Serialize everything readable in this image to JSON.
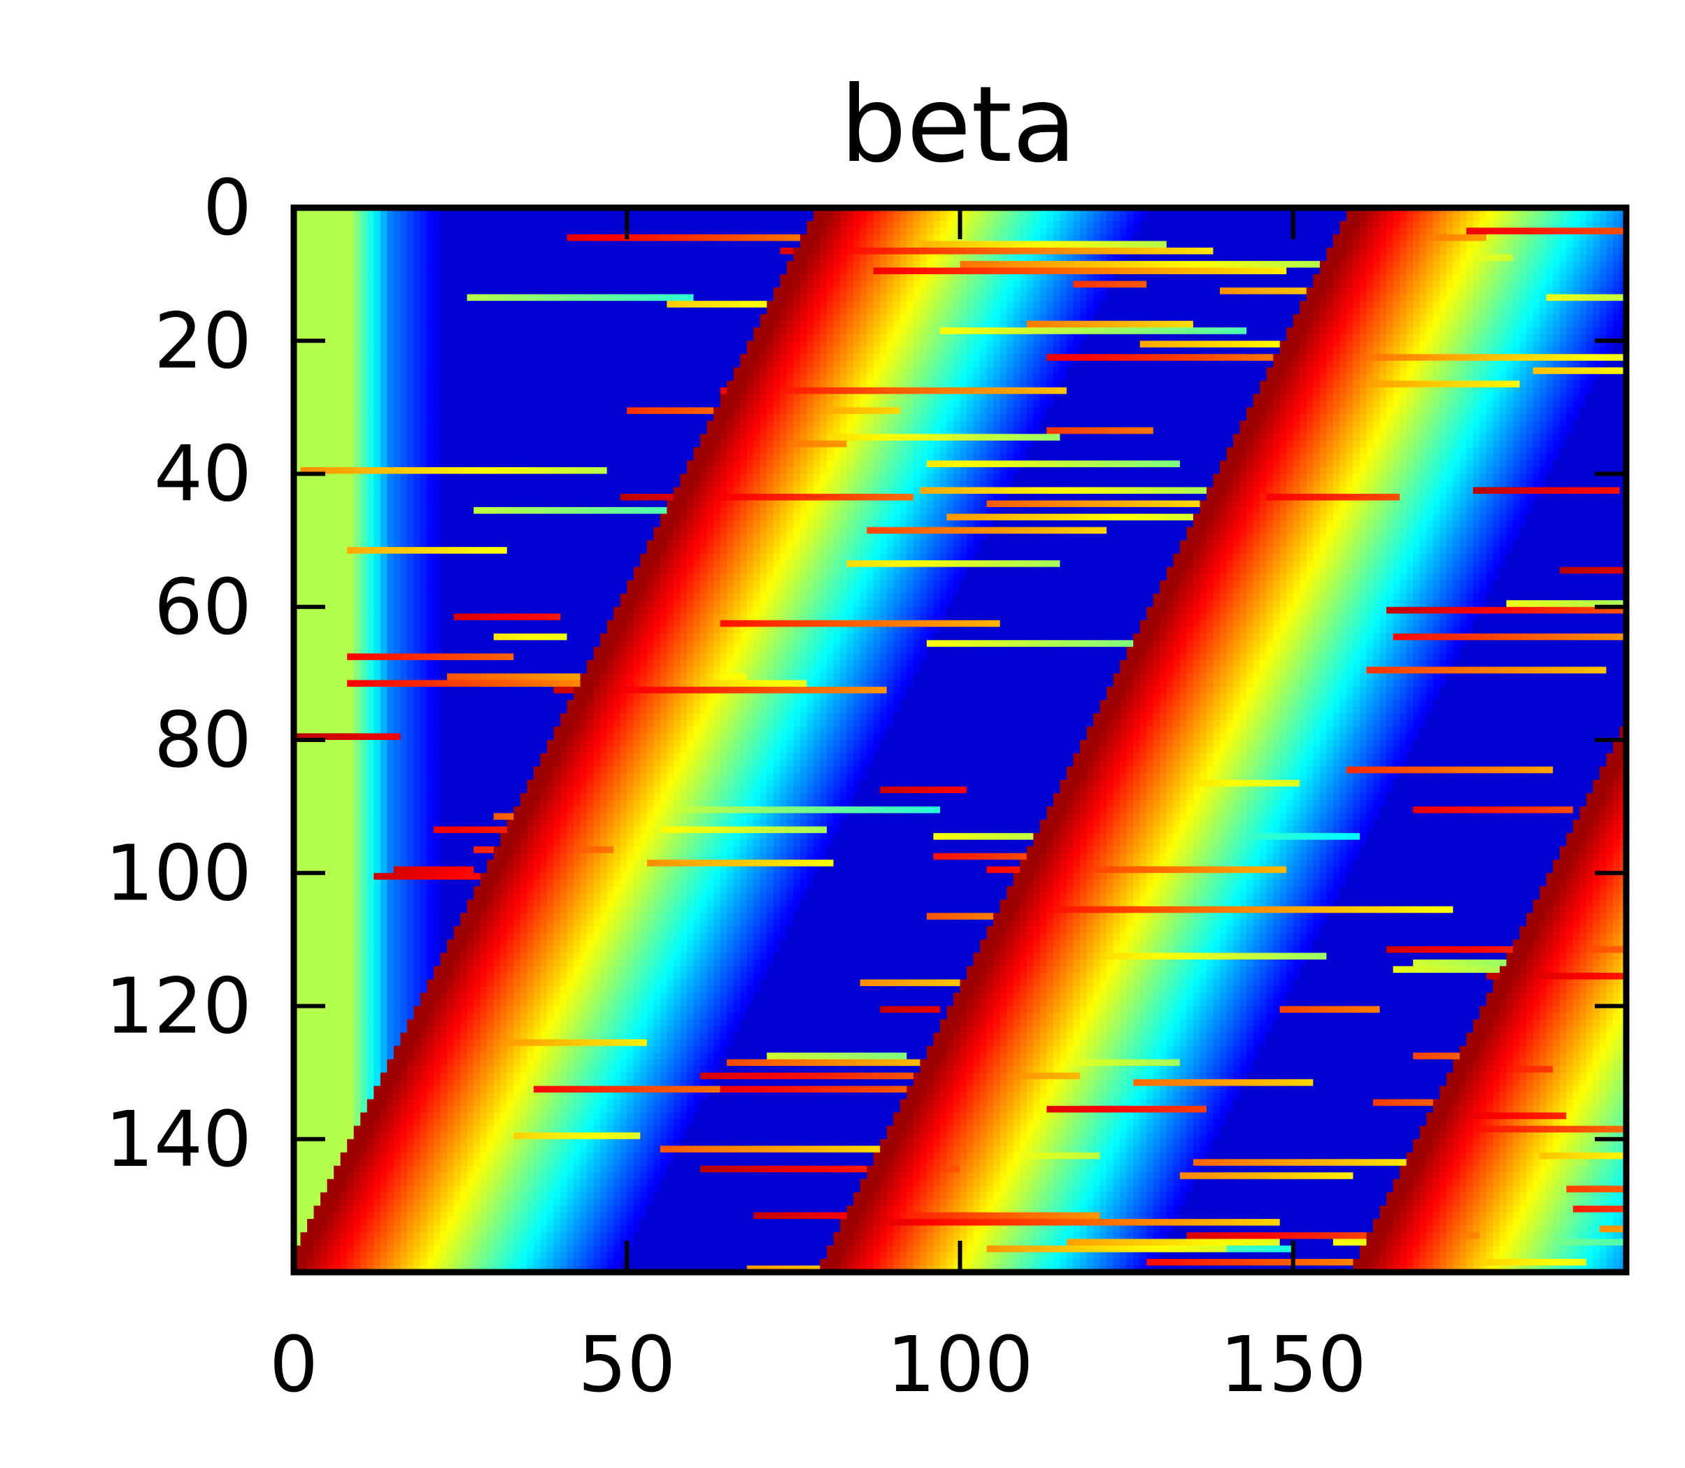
{
  "chart_data": {
    "type": "heatmap",
    "title": "beta",
    "xlabel": "",
    "ylabel": "",
    "colormap": "jet",
    "columns": 200,
    "rows": 160,
    "xlim": [
      0,
      200
    ],
    "ylim": [
      160,
      0
    ],
    "xticks": [
      0,
      50,
      100,
      150
    ],
    "yticks": [
      0,
      20,
      40,
      60,
      80,
      100,
      120,
      140
    ],
    "description_of_pattern": "",
    "row_shift_per_row": 0.5,
    "wave_period_columns": 80,
    "first_front_column_at_row0": 78,
    "grid": false,
    "legend": "none",
    "colors": {
      "axes": "#000000",
      "background": "#ffffff"
    }
  }
}
